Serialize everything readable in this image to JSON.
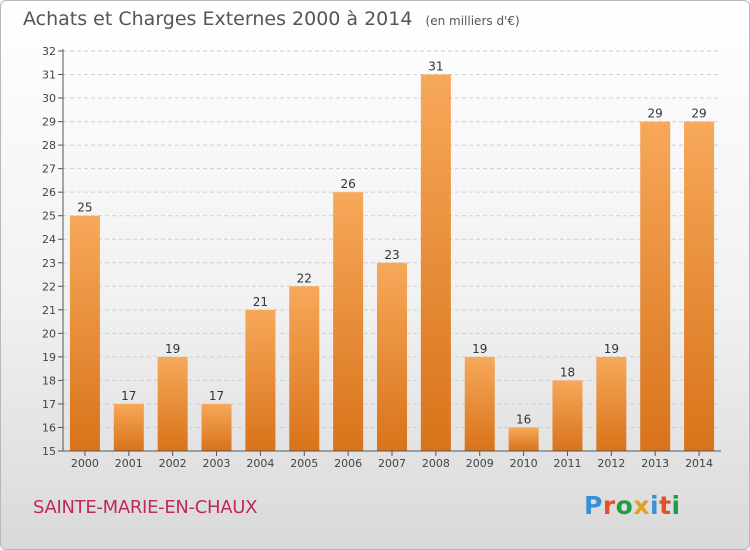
{
  "title": {
    "main": "Achats et Charges Externes 2000 à 2014",
    "unit": "(en milliers d'€)"
  },
  "commune": "SAINTE-MARIE-EN-CHAUX",
  "logo": {
    "text": "Proxiti",
    "letter_colors": [
      "#3a8fd6",
      "#e0522a",
      "#1e9e3e",
      "#e0a020",
      "#3a8fd6",
      "#e0522a",
      "#1e9e3e"
    ]
  },
  "colors": {
    "bar_light": "#f7a85a",
    "bar_dark": "#d8731a",
    "grid": "#cfcfcf",
    "axis_text": "#444444"
  },
  "chart_data": {
    "type": "bar",
    "title": "Achats et Charges Externes 2000 à 2014",
    "categories": [
      "2000",
      "2001",
      "2002",
      "2003",
      "2004",
      "2005",
      "2006",
      "2007",
      "2008",
      "2009",
      "2010",
      "2011",
      "2012",
      "2013",
      "2014"
    ],
    "values": [
      25,
      17,
      19,
      17,
      21,
      22,
      26,
      23,
      31,
      19,
      16,
      18,
      19,
      29,
      29
    ],
    "ylim": [
      15,
      32
    ],
    "yticks": [
      15,
      16,
      17,
      18,
      19,
      20,
      21,
      22,
      23,
      24,
      25,
      26,
      27,
      28,
      29,
      30,
      31,
      32
    ],
    "grid": "horizontal dashed",
    "data_labels": true
  }
}
